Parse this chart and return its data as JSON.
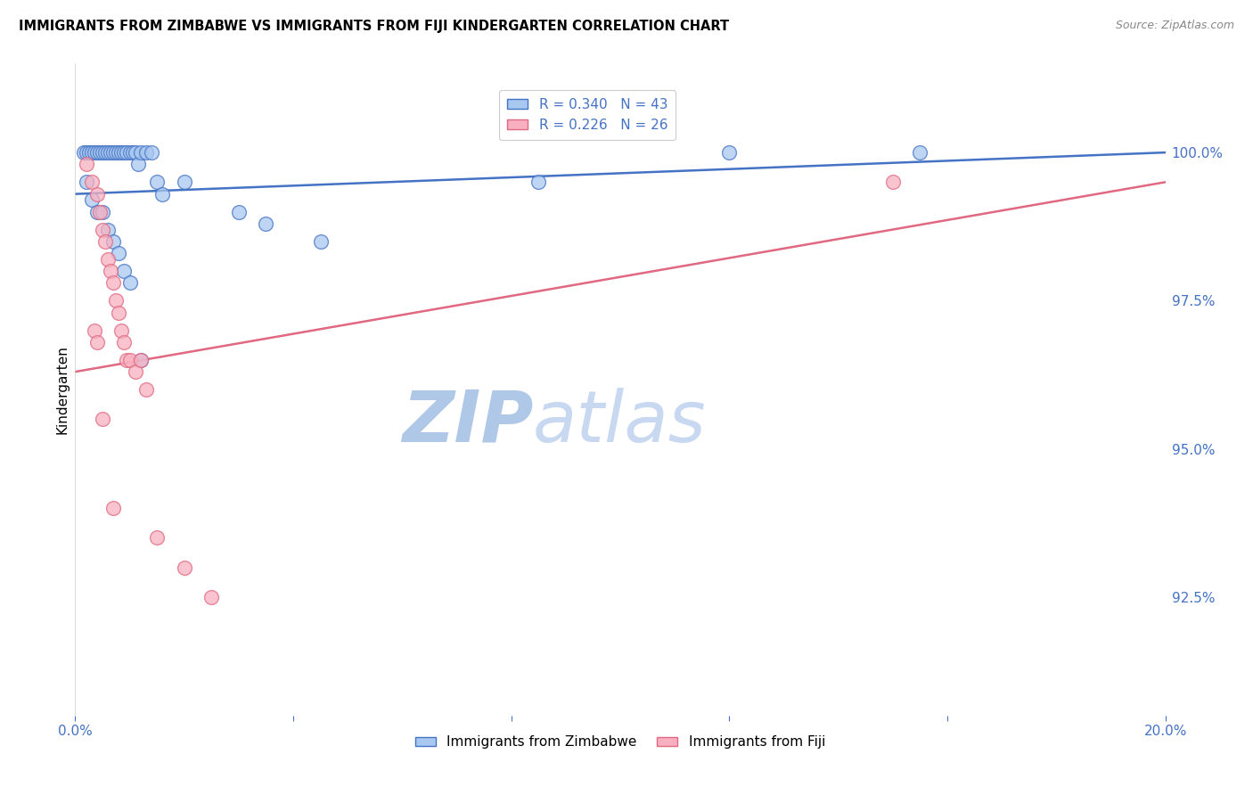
{
  "title": "IMMIGRANTS FROM ZIMBABWE VS IMMIGRANTS FROM FIJI KINDERGARTEN CORRELATION CHART",
  "source": "Source: ZipAtlas.com",
  "ylabel": "Kindergarten",
  "y_tick_labels": [
    "92.5%",
    "95.0%",
    "97.5%",
    "100.0%"
  ],
  "y_tick_values": [
    92.5,
    95.0,
    97.5,
    100.0
  ],
  "xlim": [
    0.0,
    20.0
  ],
  "ylim": [
    90.5,
    101.5
  ],
  "legend_blue_r": "0.340",
  "legend_blue_n": "43",
  "legend_pink_r": "0.226",
  "legend_pink_n": "26",
  "blue_color": "#A8C8F0",
  "pink_color": "#F8B0C0",
  "blue_line_color": "#4472C4",
  "pink_line_color": "#E06880",
  "watermark_zip_color": "#B0C8E8",
  "watermark_atlas_color": "#C8D8F0",
  "zimbabwe_x": [
    0.15,
    0.2,
    0.25,
    0.3,
    0.35,
    0.4,
    0.45,
    0.5,
    0.55,
    0.6,
    0.65,
    0.7,
    0.75,
    0.8,
    0.85,
    0.9,
    0.95,
    1.0,
    1.05,
    1.1,
    1.15,
    1.2,
    1.3,
    1.4,
    1.5,
    1.6,
    0.2,
    0.3,
    0.4,
    0.5,
    0.6,
    0.7,
    0.8,
    0.9,
    1.0,
    2.0,
    3.0,
    3.5,
    4.5,
    8.5,
    12.0,
    15.5,
    1.2
  ],
  "zimbabwe_y": [
    100.0,
    100.0,
    100.0,
    100.0,
    100.0,
    100.0,
    100.0,
    100.0,
    100.0,
    100.0,
    100.0,
    100.0,
    100.0,
    100.0,
    100.0,
    100.0,
    100.0,
    100.0,
    100.0,
    100.0,
    99.8,
    100.0,
    100.0,
    100.0,
    99.5,
    99.3,
    99.5,
    99.2,
    99.0,
    99.0,
    98.7,
    98.5,
    98.3,
    98.0,
    97.8,
    99.5,
    99.0,
    98.8,
    98.5,
    99.5,
    100.0,
    100.0,
    96.5
  ],
  "fiji_x": [
    0.2,
    0.3,
    0.4,
    0.45,
    0.5,
    0.55,
    0.6,
    0.65,
    0.7,
    0.75,
    0.8,
    0.85,
    0.9,
    0.95,
    1.0,
    1.1,
    1.2,
    1.3,
    0.35,
    0.4,
    0.5,
    0.7,
    1.5,
    2.0,
    2.5,
    15.0
  ],
  "fiji_y": [
    99.8,
    99.5,
    99.3,
    99.0,
    98.7,
    98.5,
    98.2,
    98.0,
    97.8,
    97.5,
    97.3,
    97.0,
    96.8,
    96.5,
    96.5,
    96.3,
    96.5,
    96.0,
    97.0,
    96.8,
    95.5,
    94.0,
    93.5,
    93.0,
    92.5,
    99.5
  ],
  "blue_trend_x": [
    0.0,
    20.0
  ],
  "blue_trend_y": [
    99.3,
    100.0
  ],
  "pink_trend_x": [
    0.0,
    20.0
  ],
  "pink_trend_y": [
    96.3,
    99.5
  ]
}
